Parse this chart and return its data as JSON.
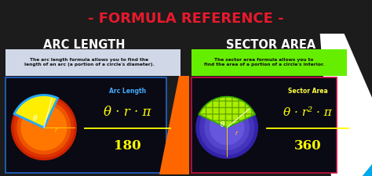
{
  "title": "- FORMULA REFERENCE -",
  "title_color": "#e8192c",
  "title_bg": "#ffffff",
  "main_bg": "#1c1c1c",
  "left_title": "ARC LENGTH",
  "right_title": "SECTOR AREA",
  "left_desc": "The arc length formula allows you to find the\nlength of an arc (a portion of a circle's diameter).",
  "right_desc": "The sector area formula allows you to\nfind the area of a portion of a circle's interior.",
  "left_formula_label": "Arc Length",
  "right_formula_label": "Sector Area",
  "left_formula": "θ · r · π",
  "left_denom": "180",
  "right_formula": "θ · r² · π",
  "right_denom": "360",
  "formula_color": "#ffff00",
  "formula_label_color_left": "#44aaff",
  "formula_label_color_right": "#ffff44",
  "panel_bg": "#0a0a14",
  "left_border": "#2266cc",
  "right_border": "#cc1144",
  "desc_bg_left": "#d0d8e8",
  "desc_bg_right": "#66ee00",
  "orange_color": "#ff6600",
  "white_color": "#ffffff",
  "cyan_color": "#00aaee"
}
